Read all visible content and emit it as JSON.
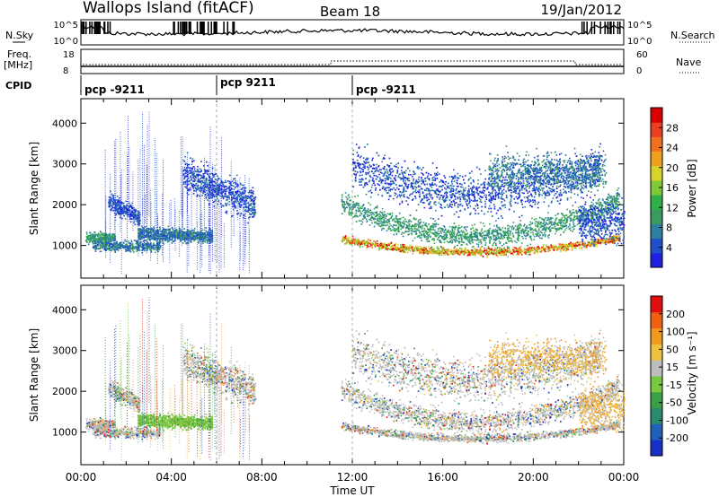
{
  "header": {
    "station": "Wallops Island (fitACF)",
    "beam": "Beam 18",
    "date": "19/Jan/2012"
  },
  "strip": {
    "nsky_label": "N.Sky",
    "nsky_ticks": [
      "10^5",
      "10^0"
    ],
    "nsearch_label": "N.Search",
    "freq_label_1": "Freq.",
    "freq_label_2": "[MHz]",
    "freq_ticks": [
      "18",
      "8"
    ],
    "nave_label": "Nave",
    "nave_ticks": [
      "60",
      "0"
    ],
    "cpid_label": "CPID"
  },
  "cpid_segments": [
    {
      "label": "pcp -9211",
      "start_hour": 0
    },
    {
      "label": "pcp 9211",
      "start_hour": 6
    },
    {
      "label": "pcp -9211",
      "start_hour": 12
    }
  ],
  "chart_data": [
    {
      "type": "heatmap",
      "panel": "power",
      "ylabel": "Slant Range [km]",
      "ylim": [
        200,
        4600
      ],
      "yticks": [
        "1000",
        "2000",
        "3000",
        "4000"
      ],
      "xlim": [
        0,
        24
      ],
      "colorbar_label": "Power [dB]",
      "colorbar_ticks": [
        "4",
        "8",
        "12",
        "16",
        "20",
        "24",
        "28"
      ],
      "colorbar_colors": [
        "#2020e0",
        "#1e50c8",
        "#2f7fa0",
        "#3a9a60",
        "#2fb04a",
        "#7fc838",
        "#d7d32a",
        "#f0a020",
        "#f07020",
        "#e84020",
        "#d80000"
      ]
    },
    {
      "type": "heatmap",
      "panel": "velocity",
      "ylabel": "Slant Range [km]",
      "ylim": [
        200,
        4600
      ],
      "yticks": [
        "1000",
        "2000",
        "3000",
        "4000"
      ],
      "xlim": [
        0,
        24
      ],
      "xticks": [
        "00:00",
        "04:00",
        "08:00",
        "12:00",
        "16:00",
        "20:00",
        "00:00"
      ],
      "xlabel": "Time UT",
      "colorbar_label": "Velocity [m s⁻¹]",
      "colorbar_ticks": [
        "200",
        "100",
        "50",
        "15",
        "-15",
        "-50",
        "-100",
        "-200"
      ],
      "colorbar_colors": [
        "#1830c8",
        "#2060b8",
        "#2a8a70",
        "#3aa048",
        "#78c840",
        "#bdbdbd",
        "#f0c040",
        "#f09a20",
        "#f06010",
        "#e01010"
      ]
    }
  ]
}
